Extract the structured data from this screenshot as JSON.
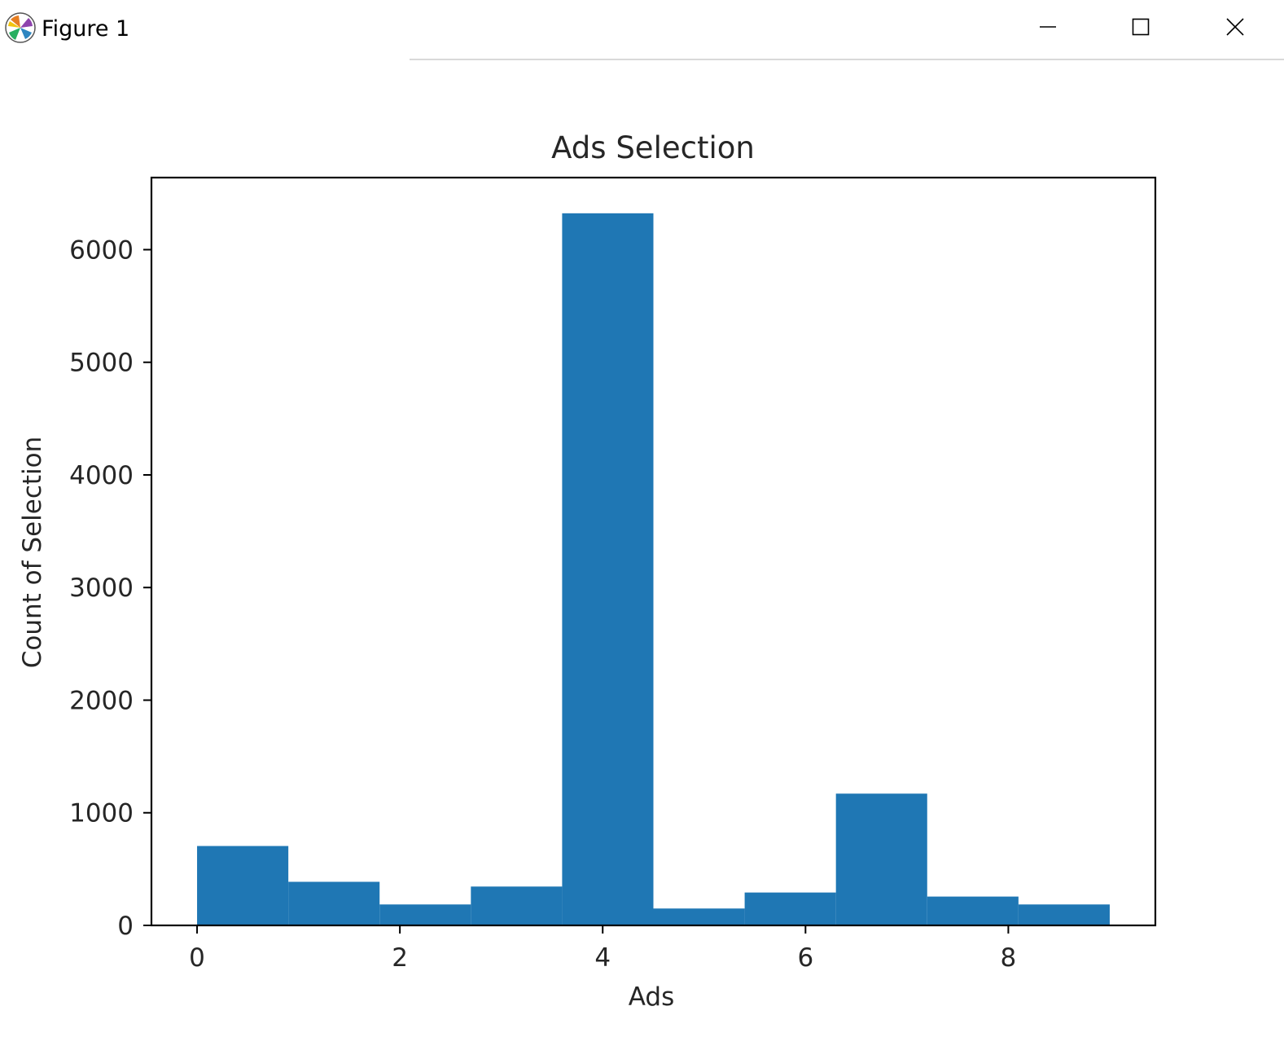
{
  "window": {
    "title": "Figure 1",
    "icon": "matplotlib-icon",
    "controls": [
      "minimize-icon",
      "maximize-icon",
      "close-icon"
    ]
  },
  "chart_data": {
    "type": "bar",
    "title": "Ads Selection",
    "xlabel": "Ads",
    "ylabel": "Count of Selection",
    "bin_edges": [
      0,
      0.9,
      1.8,
      2.7,
      3.6,
      4.5,
      5.4,
      6.3,
      7.2,
      8.1,
      9.0
    ],
    "values": [
      705,
      387,
      186,
      345,
      6323,
      150,
      292,
      1170,
      256,
      186
    ],
    "xlim": [
      -0.45,
      9.45
    ],
    "ylim": [
      0,
      6640
    ],
    "xticks": [
      0,
      2,
      4,
      6,
      8
    ],
    "yticks": [
      0,
      1000,
      2000,
      3000,
      4000,
      5000,
      6000
    ],
    "color": "#1f77b4",
    "grid": false
  }
}
